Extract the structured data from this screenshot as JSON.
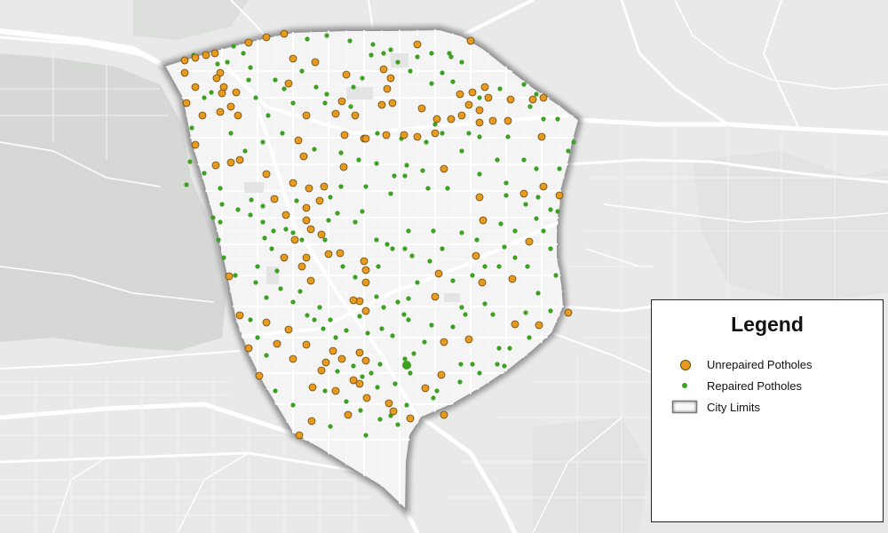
{
  "colors": {
    "background": "#e9e9e9",
    "terrain": "#d6d8d6",
    "road": "#ffffff",
    "city_fill": "#f4f4f4",
    "city_edge": "#9a9a9a",
    "unrepaired": "#e69a1e",
    "unrepaired_stroke": "#6b4a10",
    "repaired": "#3ea022"
  },
  "legend": {
    "title": "Legend",
    "items": [
      {
        "label": "Unrepaired Potholes",
        "icon": "orange-circle-icon"
      },
      {
        "label": "Repaired Potholes",
        "icon": "green-dot-icon"
      },
      {
        "label": "City Limits",
        "icon": "city-limits-swatch-icon"
      }
    ]
  }
}
